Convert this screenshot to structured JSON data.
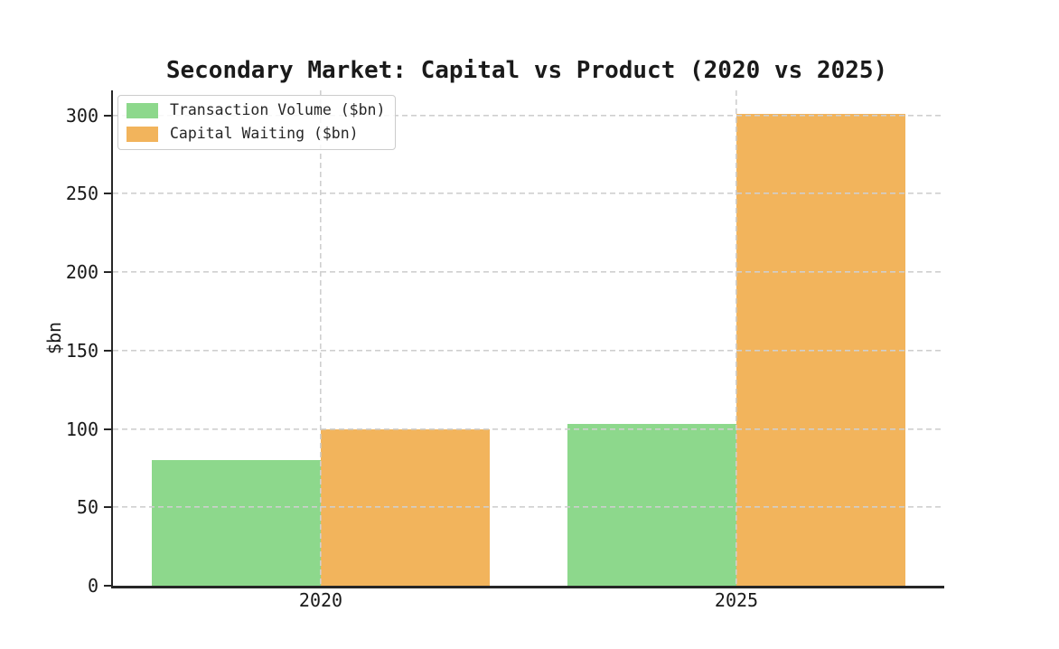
{
  "chart_data": {
    "type": "bar",
    "title": "Secondary Market: Capital vs Product (2020 vs 2025)",
    "xlabel": "",
    "ylabel": "$bn",
    "categories": [
      "2020",
      "2025"
    ],
    "series": [
      {
        "name": "Transaction Volume ($bn)",
        "color": "#8dd88c",
        "values": [
          80,
          103
        ]
      },
      {
        "name": "Capital Waiting ($bn)",
        "color": "#f2b45c",
        "values": [
          100,
          301
        ]
      }
    ],
    "ylim": [
      0,
      316
    ],
    "yticks": [
      0,
      50,
      100,
      150,
      200,
      250,
      300
    ],
    "grid": true,
    "grid_style": "dashed",
    "grid_color": "#cfcfcf",
    "axis_color": "#262626",
    "legend_position": "upper left"
  }
}
